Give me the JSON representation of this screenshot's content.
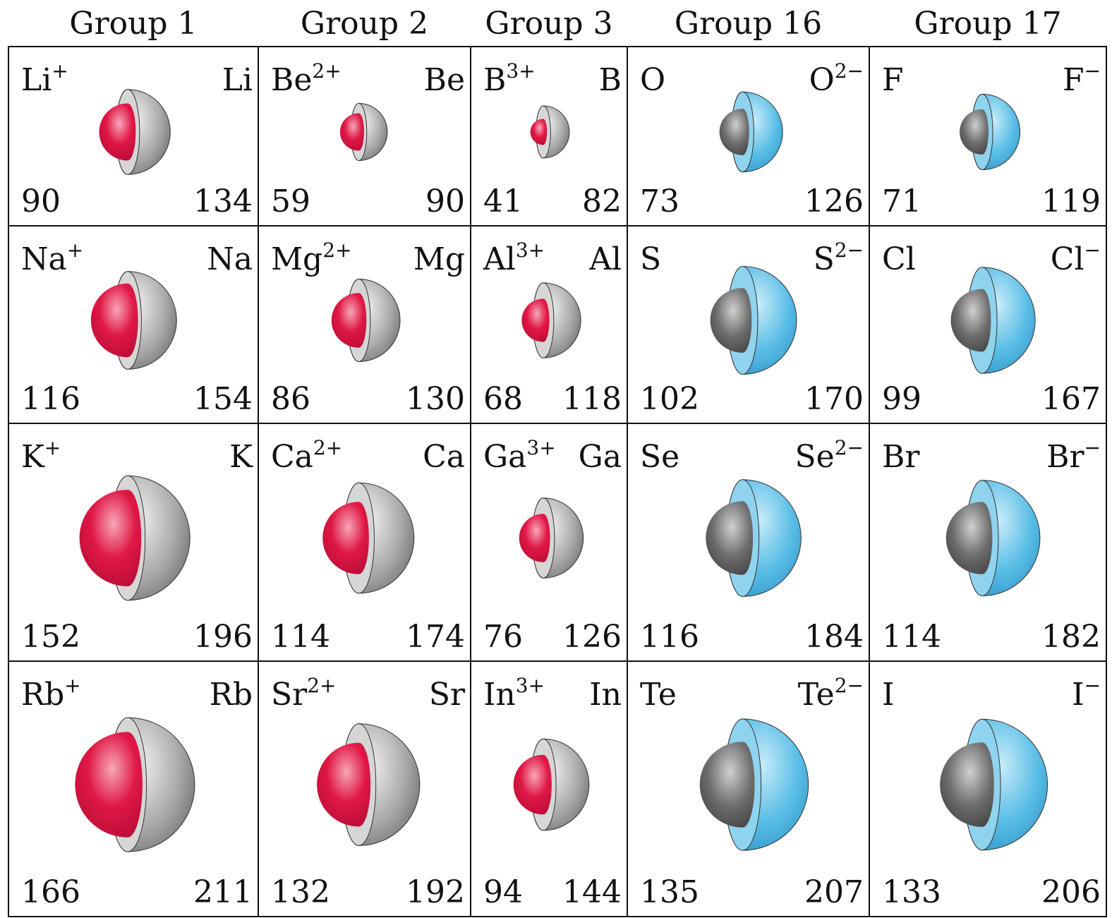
{
  "headers": [
    "Group 1",
    "Group 2",
    "Group 3",
    "Group 16",
    "Group 17"
  ],
  "colors": {
    "cation_value": "#c8245e",
    "anion_value": "#1a1ad0",
    "atom_value": "#111111"
  },
  "rows": [
    [
      {
        "left_symbol": "Li",
        "left_sup": "+",
        "right_symbol": "Li",
        "left_value": 90,
        "right_value": 134
      },
      {
        "left_symbol": "Be",
        "left_sup": "2+",
        "right_symbol": "Be",
        "left_value": 59,
        "right_value": 90
      },
      {
        "left_symbol": "B",
        "left_sup": "3+",
        "right_symbol": "B",
        "left_value": 41,
        "right_value": 82
      },
      {
        "left_symbol": "O",
        "right_symbol": "O",
        "right_sup": "2−",
        "left_value": 73,
        "right_value": 126
      },
      {
        "left_symbol": "F",
        "right_symbol": "F",
        "right_sup": "−",
        "left_value": 71,
        "right_value": 119
      }
    ],
    [
      {
        "left_symbol": "Na",
        "left_sup": "+",
        "right_symbol": "Na",
        "left_value": 116,
        "right_value": 154
      },
      {
        "left_symbol": "Mg",
        "left_sup": "2+",
        "right_symbol": "Mg",
        "left_value": 86,
        "right_value": 130
      },
      {
        "left_symbol": "Al",
        "left_sup": "3+",
        "right_symbol": "Al",
        "left_value": 68,
        "right_value": 118
      },
      {
        "left_symbol": "S",
        "right_symbol": "S",
        "right_sup": "2−",
        "left_value": 102,
        "right_value": 170
      },
      {
        "left_symbol": "Cl",
        "right_symbol": "Cl",
        "right_sup": "−",
        "left_value": 99,
        "right_value": 167
      }
    ],
    [
      {
        "left_symbol": "K",
        "left_sup": "+",
        "right_symbol": "K",
        "left_value": 152,
        "right_value": 196
      },
      {
        "left_symbol": "Ca",
        "left_sup": "2+",
        "right_symbol": "Ca",
        "left_value": 114,
        "right_value": 174
      },
      {
        "left_symbol": "Ga",
        "left_sup": "3+",
        "right_symbol": "Ga",
        "left_value": 76,
        "right_value": 126
      },
      {
        "left_symbol": "Se",
        "right_symbol": "Se",
        "right_sup": "2−",
        "left_value": 116,
        "right_value": 184
      },
      {
        "left_symbol": "Br",
        "right_symbol": "Br",
        "right_sup": "−",
        "left_value": 114,
        "right_value": 182
      }
    ],
    [
      {
        "left_symbol": "Rb",
        "left_sup": "+",
        "right_symbol": "Rb",
        "left_value": 166,
        "right_value": 211
      },
      {
        "left_symbol": "Sr",
        "left_sup": "2+",
        "right_symbol": "Sr",
        "left_value": 132,
        "right_value": 192
      },
      {
        "left_symbol": "In",
        "left_sup": "3+",
        "right_symbol": "In",
        "left_value": 94,
        "right_value": 144
      },
      {
        "left_symbol": "Te",
        "right_symbol": "Te",
        "right_sup": "2−",
        "left_value": 135,
        "right_value": 207
      },
      {
        "left_symbol": "I",
        "right_symbol": "I",
        "right_sup": "−",
        "left_value": 133,
        "right_value": 206
      }
    ]
  ]
}
